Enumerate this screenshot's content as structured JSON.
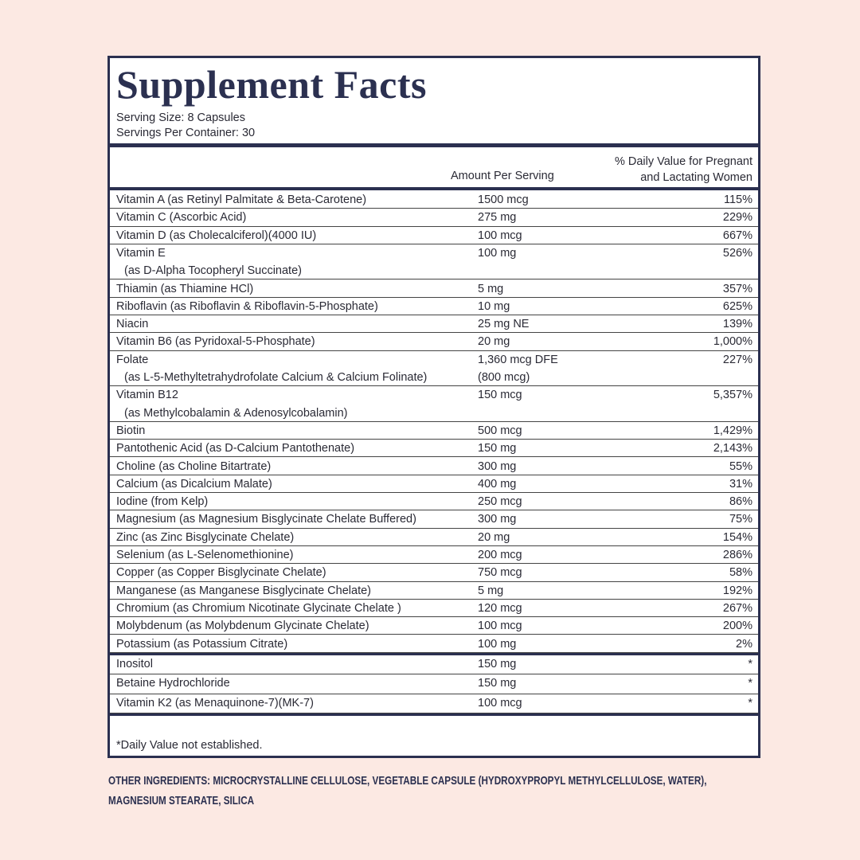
{
  "title": "Supplement Facts",
  "serving_size": "Serving Size: 8 Capsules",
  "servings_per_container": "Servings Per Container: 30",
  "columns": {
    "amount": "Amount Per Serving",
    "daily_value": "% Daily Value for Pregnant and Lactating Women"
  },
  "rows": [
    {
      "name": "Vitamin A (as Retinyl Palmitate & Beta-Carotene)",
      "amount": "1500 mcg",
      "dv": "115%"
    },
    {
      "name": "Vitamin C (Ascorbic Acid)",
      "amount": "275 mg",
      "dv": "229%"
    },
    {
      "name": "Vitamin D (as Cholecalciferol)(4000 IU)",
      "amount": "100 mcg",
      "dv": "667%"
    },
    {
      "name": "Vitamin E",
      "detail": "(as D-Alpha Tocopheryl Succinate)",
      "amount": "100 mg",
      "dv": "526%"
    },
    {
      "name": "Thiamin (as Thiamine HCl)",
      "amount": "5 mg",
      "dv": "357%"
    },
    {
      "name": "Riboflavin (as Riboflavin & Riboflavin-5-Phosphate)",
      "amount": "10 mg",
      "dv": "625%"
    },
    {
      "name": "Niacin",
      "amount": "25 mg NE",
      "dv": "139%"
    },
    {
      "name": "Vitamin B6 (as Pyridoxal-5-Phosphate)",
      "amount": "20 mg",
      "dv": "1,000%"
    },
    {
      "name": "Folate",
      "detail": "(as L-5-Methyltetrahydrofolate Calcium & Calcium Folinate)",
      "amount": "1,360 mcg DFE",
      "amount_detail": "(800 mcg)",
      "dv": "227%"
    },
    {
      "name": "Vitamin B12",
      "detail": "(as Methylcobalamin & Adenosylcobalamin)",
      "amount": "150 mcg",
      "dv": "5,357%"
    },
    {
      "name": "Biotin",
      "amount": "500 mcg",
      "dv": "1,429%"
    },
    {
      "name": "Pantothenic Acid (as D-Calcium Pantothenate)",
      "amount": "150 mg",
      "dv": "2,143%"
    },
    {
      "name": "Choline (as Choline Bitartrate)",
      "amount": "300 mg",
      "dv": "55%"
    },
    {
      "name": "Calcium (as Dicalcium Malate)",
      "amount": "400 mg",
      "dv": "31%"
    },
    {
      "name": "Iodine (from Kelp)",
      "amount": "250 mcg",
      "dv": "86%"
    },
    {
      "name": "Magnesium (as Magnesium Bisglycinate Chelate Buffered)",
      "amount": "300 mg",
      "dv": "75%"
    },
    {
      "name": "Zinc (as Zinc Bisglycinate Chelate)",
      "amount": "20 mg",
      "dv": "154%"
    },
    {
      "name": "Selenium (as L-Selenomethionine)",
      "amount": "200 mcg",
      "dv": "286%"
    },
    {
      "name": "Copper (as Copper Bisglycinate Chelate)",
      "amount": "750 mcg",
      "dv": "58%"
    },
    {
      "name": "Manganese (as Manganese Bisglycinate Chelate)",
      "amount": "5 mg",
      "dv": "192%"
    },
    {
      "name": "Chromium (as Chromium Nicotinate Glycinate Chelate )",
      "amount": "120 mcg",
      "dv": "267%"
    },
    {
      "name": "Molybdenum (as Molybdenum Glycinate Chelate)",
      "amount": "100 mcg",
      "dv": "200%"
    },
    {
      "name": "Potassium (as Potassium Citrate)",
      "amount": "100 mg",
      "dv": "2%"
    }
  ],
  "other_rows": [
    {
      "name": "Inositol",
      "amount": "150 mg",
      "dv": "*"
    },
    {
      "name": "Betaine Hydrochloride",
      "amount": "150 mg",
      "dv": "*"
    },
    {
      "name": "Vitamin K2 (as Menaquinone-7)(MK-7)",
      "amount": "100 mcg",
      "dv": "*"
    }
  ],
  "footnote": "*Daily Value not established.",
  "other_ingredients": {
    "label": "OTHER INGREDIENTS:",
    "text": "MICROCRYSTALLINE CELLULOSE, VEGETABLE CAPSULE (HYDROXYPROPYL METHYLCELLULOSE, WATER), MAGNESIUM STEARATE, SILICA"
  }
}
